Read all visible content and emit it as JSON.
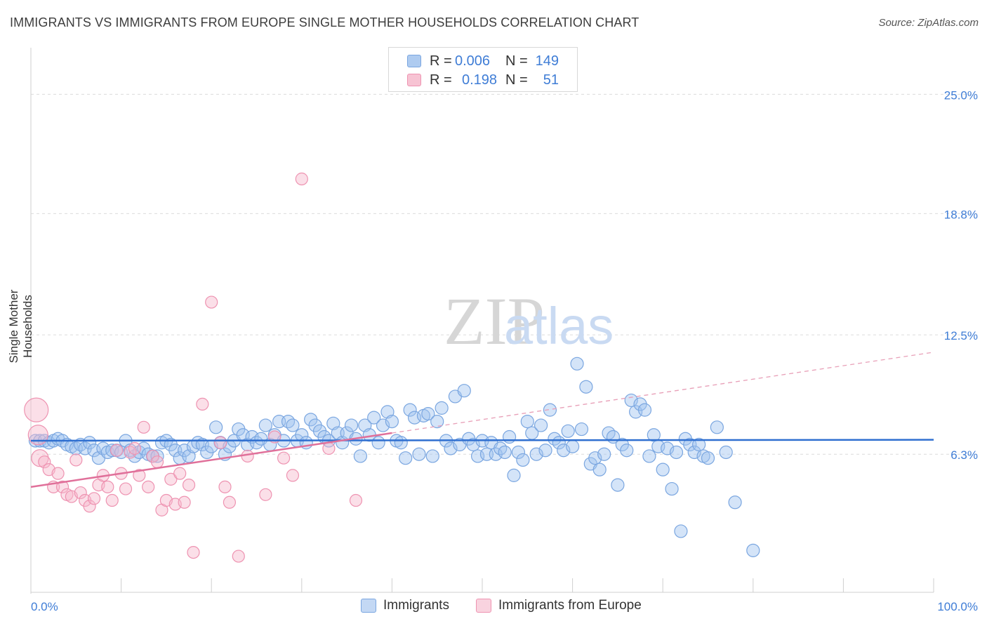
{
  "title": "IMMIGRANTS VS IMMIGRANTS FROM EUROPE SINGLE MOTHER HOUSEHOLDS CORRELATION CHART",
  "source": "Source: ZipAtlas.com",
  "watermark": {
    "zip": "ZIP",
    "atlas": "atlas"
  },
  "legend": {
    "r_label": "R =",
    "n_label": "N =",
    "rows": [
      {
        "r": "0.006",
        "n": "149",
        "color": "#aecbf0",
        "border": "#7aa6e0"
      },
      {
        "r": "0.198",
        "n": "51",
        "color": "#f7c3d3",
        "border": "#ee93b1"
      }
    ]
  },
  "bottom_legend": [
    "Immigrants",
    "Immigrants from Europe"
  ],
  "chart_data": {
    "type": "scatter",
    "title": "IMMIGRANTS VS IMMIGRANTS FROM EUROPE SINGLE MOTHER HOUSEHOLDS CORRELATION CHART",
    "xlabel": "",
    "ylabel": "Single Mother Households",
    "xlim": [
      0,
      100
    ],
    "ylim": [
      0,
      27.2
    ],
    "x_tick_labels": [
      "0.0%",
      "100.0%"
    ],
    "y_ticks": [
      6.3,
      12.5,
      18.8,
      25.0
    ],
    "y_tick_labels": [
      "6.3%",
      "12.5%",
      "18.8%",
      "25.0%"
    ],
    "series": [
      {
        "name": "Immigrants",
        "color": "#7aa6e0",
        "fill": "rgba(160,195,240,0.45)",
        "trend": {
          "x": [
            0,
            100
          ],
          "y": [
            7.0,
            7.05
          ],
          "color": "#2f6fd0"
        },
        "points": [
          [
            0.5,
            7.0
          ],
          [
            1,
            7.0
          ],
          [
            1.5,
            7.0
          ],
          [
            2,
            6.9
          ],
          [
            2.5,
            7.0
          ],
          [
            3,
            7.1
          ],
          [
            3.5,
            7.0
          ],
          [
            4,
            6.8
          ],
          [
            4.5,
            6.7
          ],
          [
            5,
            6.6
          ],
          [
            5.5,
            6.8
          ],
          [
            6,
            6.6
          ],
          [
            6.5,
            6.9
          ],
          [
            7,
            6.5
          ],
          [
            7.5,
            6.1
          ],
          [
            8,
            6.6
          ],
          [
            8.5,
            6.4
          ],
          [
            9,
            6.5
          ],
          [
            9.5,
            6.5
          ],
          [
            10,
            6.4
          ],
          [
            10.5,
            7.0
          ],
          [
            11,
            6.5
          ],
          [
            11.5,
            6.2
          ],
          [
            12,
            6.4
          ],
          [
            12.5,
            6.6
          ],
          [
            13,
            6.3
          ],
          [
            13.5,
            6.2
          ],
          [
            14,
            6.2
          ],
          [
            14.5,
            6.9
          ],
          [
            15,
            7.0
          ],
          [
            15.5,
            6.8
          ],
          [
            16,
            6.5
          ],
          [
            16.5,
            6.1
          ],
          [
            17,
            6.5
          ],
          [
            17.5,
            6.2
          ],
          [
            18,
            6.7
          ],
          [
            18.5,
            6.9
          ],
          [
            19,
            6.8
          ],
          [
            19.5,
            6.4
          ],
          [
            20,
            6.7
          ],
          [
            20.5,
            7.7
          ],
          [
            21,
            6.9
          ],
          [
            21.5,
            6.3
          ],
          [
            22,
            6.7
          ],
          [
            22.5,
            7.0
          ],
          [
            23,
            7.6
          ],
          [
            23.5,
            7.3
          ],
          [
            24,
            6.8
          ],
          [
            24.5,
            7.2
          ],
          [
            25,
            6.9
          ],
          [
            25.5,
            7.1
          ],
          [
            26,
            7.8
          ],
          [
            26.5,
            6.8
          ],
          [
            27,
            7.3
          ],
          [
            27.5,
            8.0
          ],
          [
            28,
            7.0
          ],
          [
            28.5,
            8.0
          ],
          [
            29,
            7.8
          ],
          [
            29.5,
            7.0
          ],
          [
            30,
            7.3
          ],
          [
            30.5,
            6.9
          ],
          [
            31,
            8.1
          ],
          [
            31.5,
            7.8
          ],
          [
            32,
            7.5
          ],
          [
            32.5,
            7.2
          ],
          [
            33,
            7.0
          ],
          [
            33.5,
            7.9
          ],
          [
            34,
            7.4
          ],
          [
            34.5,
            6.9
          ],
          [
            35,
            7.4
          ],
          [
            35.5,
            7.8
          ],
          [
            36,
            7.1
          ],
          [
            36.5,
            6.2
          ],
          [
            37,
            7.8
          ],
          [
            37.5,
            7.3
          ],
          [
            38,
            8.2
          ],
          [
            38.5,
            6.9
          ],
          [
            39,
            7.8
          ],
          [
            39.5,
            8.5
          ],
          [
            40,
            8.0
          ],
          [
            40.5,
            7.0
          ],
          [
            41,
            6.9
          ],
          [
            41.5,
            6.1
          ],
          [
            42,
            8.6
          ],
          [
            42.5,
            8.2
          ],
          [
            43,
            6.3
          ],
          [
            43.5,
            8.3
          ],
          [
            44,
            8.4
          ],
          [
            44.5,
            6.2
          ],
          [
            45,
            8.0
          ],
          [
            45.5,
            8.7
          ],
          [
            46,
            7.0
          ],
          [
            46.5,
            6.6
          ],
          [
            47,
            9.3
          ],
          [
            47.5,
            6.8
          ],
          [
            48,
            9.6
          ],
          [
            48.5,
            7.1
          ],
          [
            49,
            6.8
          ],
          [
            49.5,
            6.2
          ],
          [
            50,
            7.0
          ],
          [
            50.5,
            6.3
          ],
          [
            51,
            6.9
          ],
          [
            51.5,
            6.3
          ],
          [
            52,
            6.6
          ],
          [
            52.5,
            6.4
          ],
          [
            53,
            7.2
          ],
          [
            53.5,
            5.2
          ],
          [
            54,
            6.4
          ],
          [
            54.5,
            6.0
          ],
          [
            55,
            8.0
          ],
          [
            55.5,
            7.4
          ],
          [
            56,
            6.3
          ],
          [
            56.5,
            7.8
          ],
          [
            57,
            6.5
          ],
          [
            57.5,
            8.6
          ],
          [
            58,
            7.1
          ],
          [
            58.5,
            6.9
          ],
          [
            59,
            6.5
          ],
          [
            59.5,
            7.5
          ],
          [
            60,
            6.7
          ],
          [
            60.5,
            11.0
          ],
          [
            61,
            7.6
          ],
          [
            61.5,
            9.8
          ],
          [
            62,
            5.8
          ],
          [
            62.5,
            6.1
          ],
          [
            63,
            5.5
          ],
          [
            63.5,
            6.3
          ],
          [
            64,
            7.4
          ],
          [
            64.5,
            7.2
          ],
          [
            65,
            4.7
          ],
          [
            65.5,
            6.8
          ],
          [
            66,
            6.5
          ],
          [
            66.5,
            9.1
          ],
          [
            67,
            8.5
          ],
          [
            67.5,
            8.9
          ],
          [
            68,
            8.6
          ],
          [
            68.5,
            6.2
          ],
          [
            69,
            7.3
          ],
          [
            69.5,
            6.7
          ],
          [
            70,
            5.5
          ],
          [
            70.5,
            6.6
          ],
          [
            71,
            4.5
          ],
          [
            71.5,
            6.4
          ],
          [
            72,
            2.3
          ],
          [
            72.5,
            7.1
          ],
          [
            73,
            6.8
          ],
          [
            73.5,
            6.4
          ],
          [
            74,
            6.8
          ],
          [
            74.5,
            6.2
          ],
          [
            75,
            6.1
          ],
          [
            76,
            7.7
          ],
          [
            77,
            6.4
          ],
          [
            78,
            3.8
          ],
          [
            80,
            1.3
          ]
        ]
      },
      {
        "name": "Immigrants from Europe",
        "color": "#ee93b1",
        "fill": "rgba(247,185,205,0.45)",
        "trend": {
          "x": [
            0,
            40
          ],
          "y": [
            4.6,
            7.4
          ],
          "color": "#e0709a"
        },
        "trend_dashed": {
          "x": [
            40,
            100
          ],
          "y": [
            7.4,
            11.6
          ],
          "color": "#e8a0b8"
        },
        "points": [
          [
            0.6,
            8.6
          ],
          [
            0.8,
            7.3
          ],
          [
            1,
            6.1
          ],
          [
            1.5,
            5.9
          ],
          [
            2,
            5.5
          ],
          [
            2.5,
            4.6
          ],
          [
            3,
            5.3
          ],
          [
            3.5,
            4.6
          ],
          [
            4,
            4.2
          ],
          [
            4.5,
            4.1
          ],
          [
            5,
            6.0
          ],
          [
            5.5,
            4.3
          ],
          [
            6,
            3.9
          ],
          [
            6.5,
            3.6
          ],
          [
            7,
            4.0
          ],
          [
            7.5,
            4.7
          ],
          [
            8,
            5.2
          ],
          [
            8.5,
            4.6
          ],
          [
            9,
            3.9
          ],
          [
            9.5,
            6.5
          ],
          [
            10,
            5.3
          ],
          [
            10.5,
            4.5
          ],
          [
            11,
            6.4
          ],
          [
            11.5,
            6.6
          ],
          [
            12,
            5.2
          ],
          [
            12.5,
            7.7
          ],
          [
            13,
            4.6
          ],
          [
            13.5,
            6.2
          ],
          [
            14,
            5.9
          ],
          [
            14.5,
            3.4
          ],
          [
            15,
            3.9
          ],
          [
            15.5,
            5.0
          ],
          [
            16,
            3.7
          ],
          [
            16.5,
            5.3
          ],
          [
            17,
            3.8
          ],
          [
            17.5,
            4.7
          ],
          [
            18,
            1.2
          ],
          [
            19,
            8.9
          ],
          [
            20,
            14.2
          ],
          [
            21,
            6.9
          ],
          [
            21.5,
            4.6
          ],
          [
            22,
            3.8
          ],
          [
            23,
            1.0
          ],
          [
            24,
            6.2
          ],
          [
            26,
            4.2
          ],
          [
            27,
            7.2
          ],
          [
            28,
            6.1
          ],
          [
            29,
            5.2
          ],
          [
            30,
            20.6
          ],
          [
            33,
            6.6
          ],
          [
            36,
            3.9
          ]
        ]
      }
    ]
  }
}
